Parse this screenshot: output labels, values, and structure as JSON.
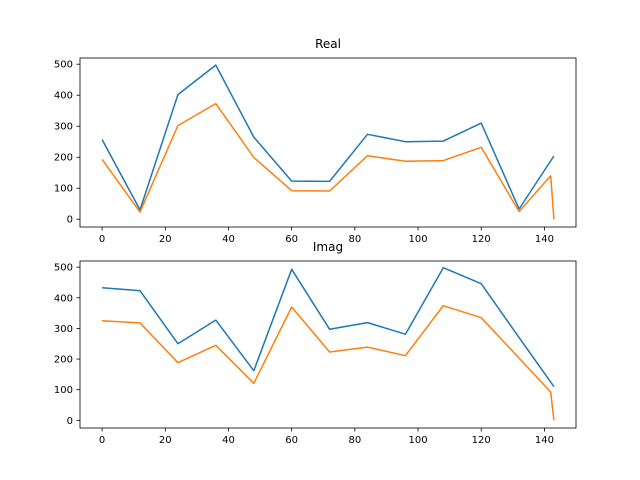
{
  "chart_data": [
    {
      "type": "line",
      "title": "Real",
      "xlabel": "",
      "ylabel": "",
      "xlim": [
        -7,
        150
      ],
      "ylim": [
        -25,
        520
      ],
      "xticks": [
        0,
        20,
        40,
        60,
        80,
        100,
        120,
        140
      ],
      "yticks": [
        0,
        100,
        200,
        300,
        400,
        500
      ],
      "grid": false,
      "series": [
        {
          "color": "#1f77b4",
          "x": [
            0,
            12,
            24,
            36,
            48,
            60,
            72,
            84,
            96,
            108,
            120,
            132,
            143
          ],
          "y": [
            257,
            30,
            402,
            497,
            265,
            123,
            122,
            274,
            250,
            252,
            310,
            33,
            204
          ]
        },
        {
          "color": "#ff7f0e",
          "x": [
            0,
            12,
            24,
            36,
            48,
            60,
            72,
            84,
            96,
            108,
            120,
            132,
            142,
            143
          ],
          "y": [
            193,
            23,
            302,
            373,
            199,
            92,
            91,
            205,
            187,
            189,
            232,
            25,
            140,
            0
          ]
        }
      ]
    },
    {
      "type": "line",
      "title": "Imag",
      "xlabel": "",
      "ylabel": "",
      "xlim": [
        -7,
        150
      ],
      "ylim": [
        -25,
        520
      ],
      "xticks": [
        0,
        20,
        40,
        60,
        80,
        100,
        120,
        140
      ],
      "yticks": [
        0,
        100,
        200,
        300,
        400,
        500
      ],
      "grid": false,
      "series": [
        {
          "color": "#1f77b4",
          "x": [
            0,
            12,
            24,
            36,
            48,
            60,
            72,
            84,
            96,
            108,
            120,
            132,
            143
          ],
          "y": [
            433,
            423,
            250,
            327,
            162,
            493,
            297,
            319,
            281,
            498,
            446,
            270,
            110
          ]
        },
        {
          "color": "#ff7f0e",
          "x": [
            0,
            12,
            24,
            36,
            48,
            60,
            72,
            84,
            96,
            108,
            120,
            132,
            142,
            143
          ],
          "y": [
            325,
            318,
            188,
            245,
            121,
            370,
            223,
            239,
            211,
            374,
            335,
            203,
            92,
            0
          ]
        }
      ]
    }
  ]
}
